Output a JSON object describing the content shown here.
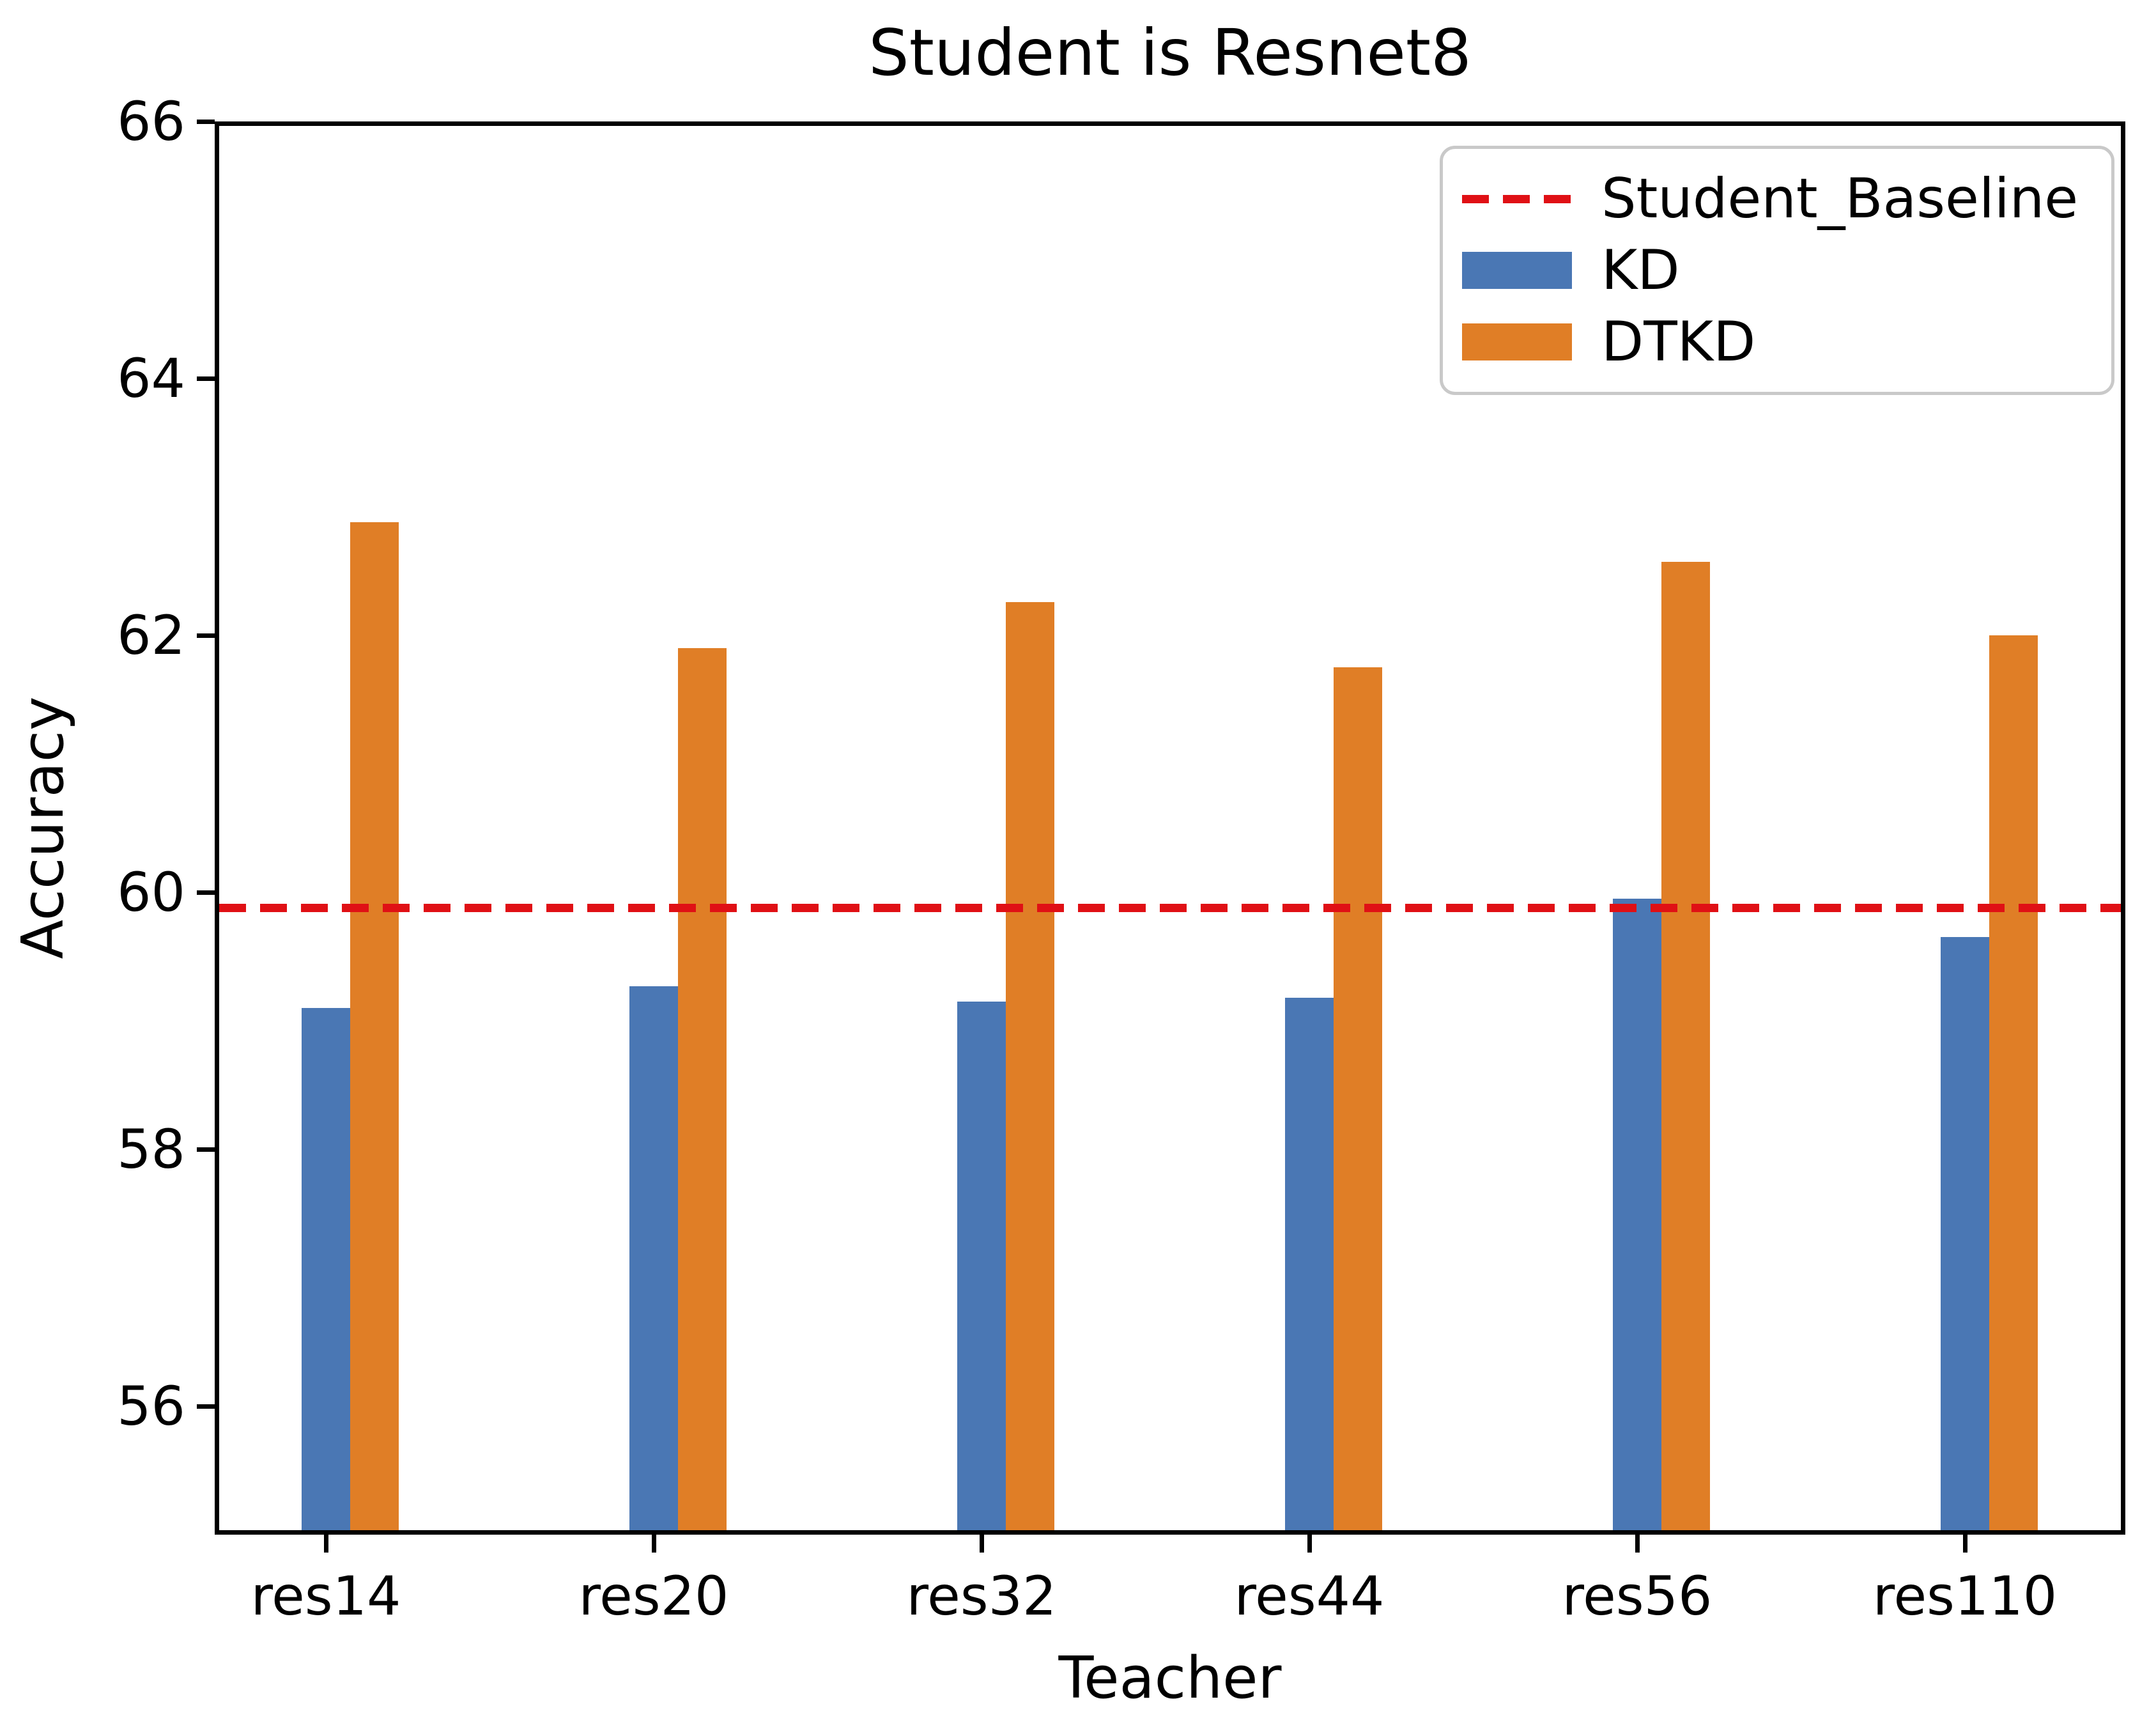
{
  "chart_data": {
    "type": "bar",
    "title": "Student is Resnet8",
    "xlabel": "Teacher",
    "ylabel": "Accuracy",
    "categories": [
      "res14",
      "res20",
      "res32",
      "res44",
      "res56",
      "res110"
    ],
    "series": [
      {
        "name": "KD",
        "color": "#4A77B4",
        "values": [
          59.1,
          59.27,
          59.15,
          59.18,
          59.95,
          59.65
        ]
      },
      {
        "name": "DTKD",
        "color": "#E07E26",
        "values": [
          62.88,
          61.9,
          62.26,
          61.75,
          62.57,
          62.0
        ]
      }
    ],
    "baseline": {
      "name": "Student_Baseline",
      "value": 59.88,
      "color": "#E01015",
      "style": "dashed"
    },
    "ylim": [
      55,
      66
    ],
    "yticks": [
      56,
      58,
      60,
      62,
      64,
      66
    ],
    "grid": false,
    "legend_position": "upper right",
    "axis_color": "#000000",
    "legend_border_color": "#c9c9c9"
  }
}
